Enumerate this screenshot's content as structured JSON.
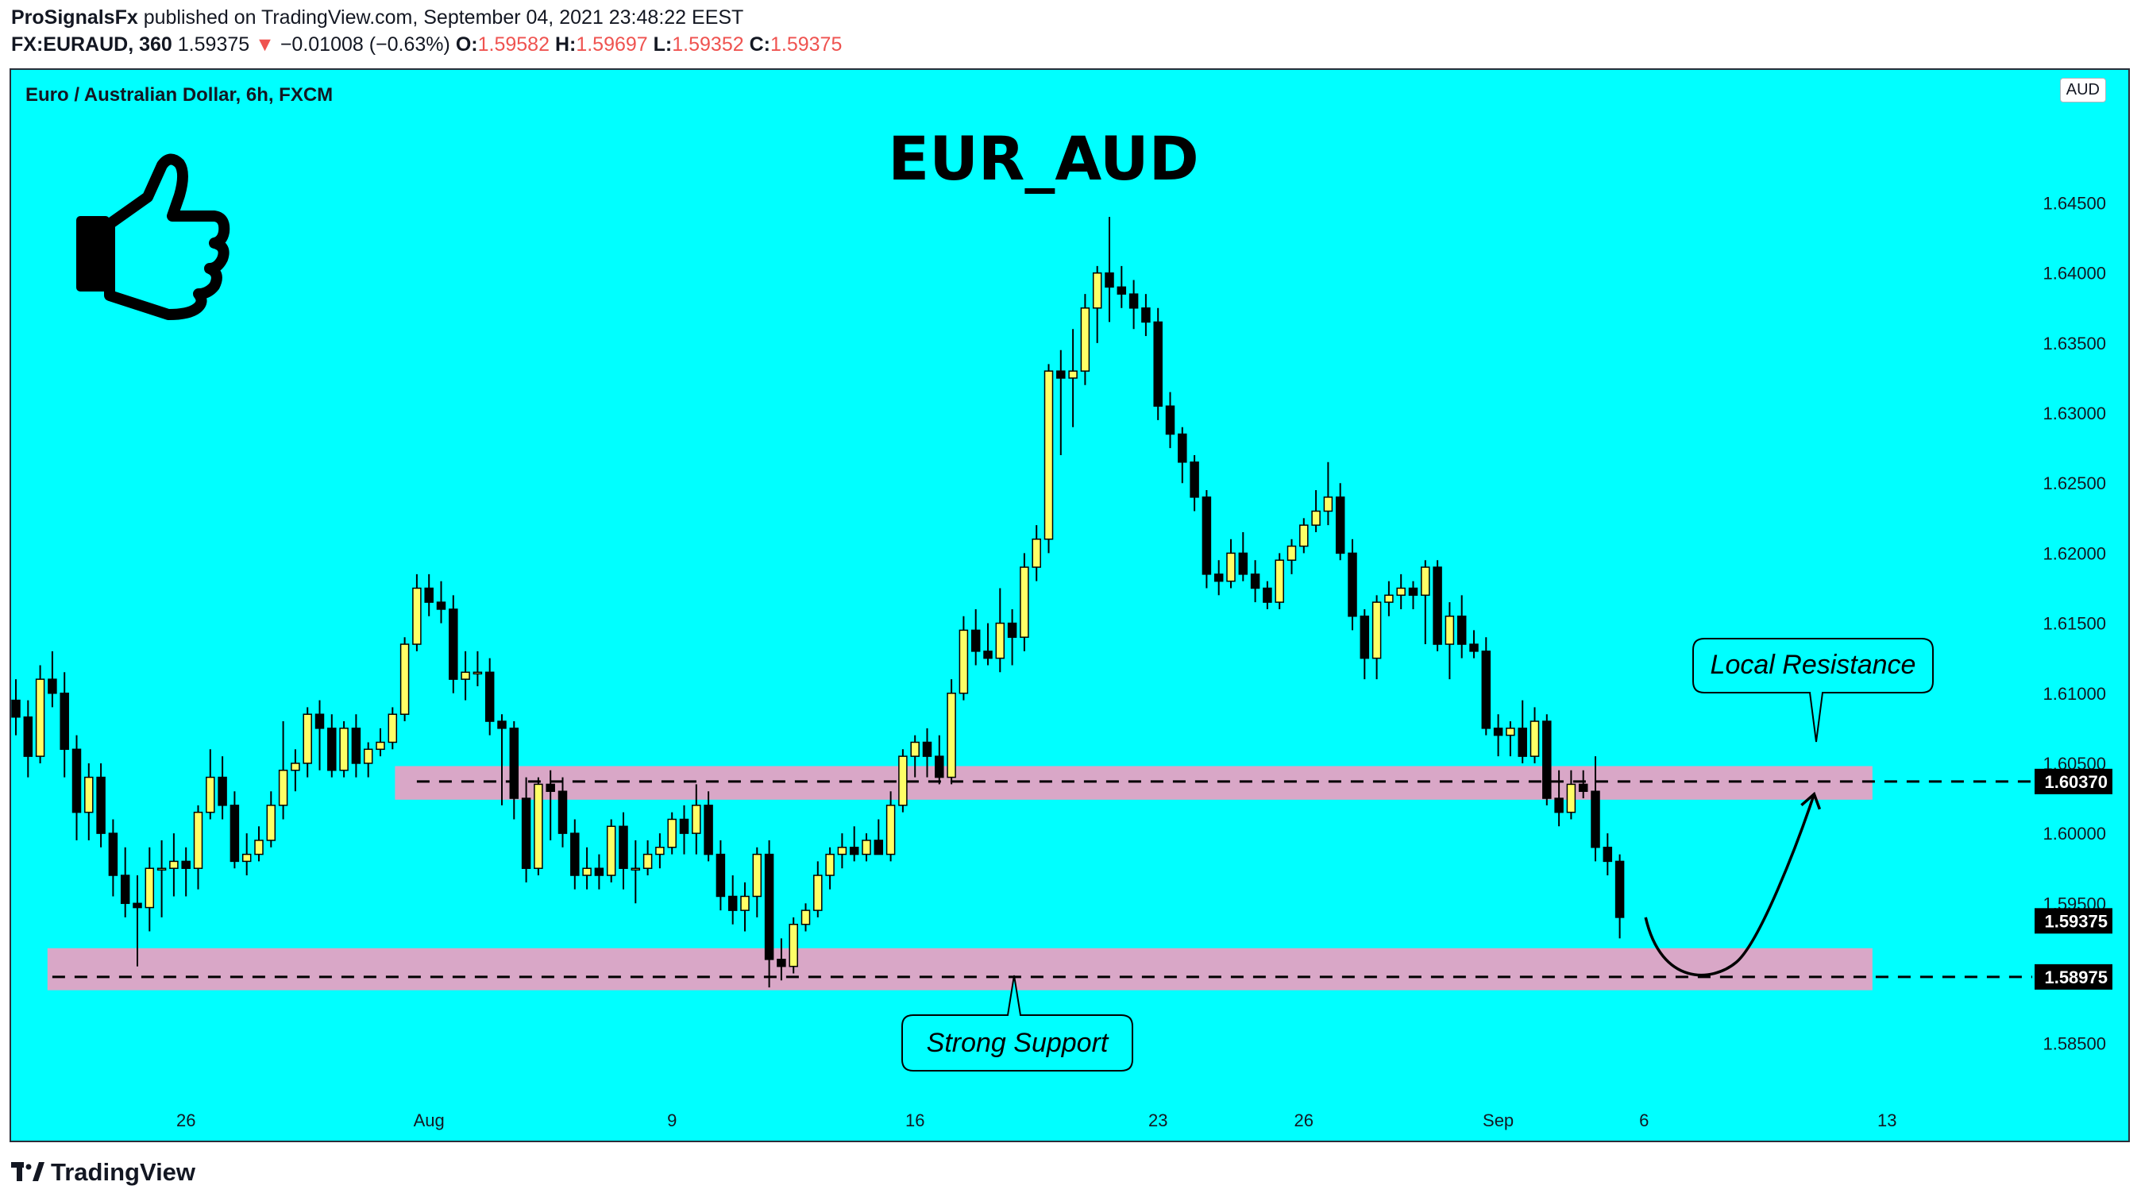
{
  "header": {
    "author": "ProSignalsFx",
    "published_text": "published on TradingView.com, September 04, 2021 23:48:22 EEST",
    "symbol": "FX:EURAUD, 360",
    "last_price": "1.59375",
    "change_arrow": "▼",
    "change": "−0.01008 (−0.63%)",
    "o_label": "O:",
    "o_value": "1.59582",
    "h_label": "H:",
    "h_value": "1.59697",
    "l_label": "L:",
    "l_value": "1.59352",
    "c_label": "C:",
    "c_value": "1.59375"
  },
  "footer": {
    "brand": "TradingView"
  },
  "colors": {
    "background": "#00ffff",
    "bull_body": "#ffff66",
    "bear_body": "#000000",
    "zone_fill": "#d9a7c7",
    "negative": "#ef5350"
  },
  "chart_data": {
    "type": "candlestick",
    "symbol_title": "Euro / Australian Dollar, 6h, FXCM",
    "title": "EUR_AUD",
    "currency": "AUD",
    "ylim": [
      1.5805,
      1.6545
    ],
    "y_ticks": [
      "1.58500",
      "1.59000",
      "1.59500",
      "1.60000",
      "1.60500",
      "1.61000",
      "1.61500",
      "1.62000",
      "1.62500",
      "1.63000",
      "1.63500",
      "1.64000",
      "1.64500"
    ],
    "x_ticks": [
      {
        "label": "26",
        "index": 14
      },
      {
        "label": "Aug",
        "index": 34
      },
      {
        "label": "9",
        "index": 54
      },
      {
        "label": "16",
        "index": 74
      },
      {
        "label": "23",
        "index": 94
      },
      {
        "label": "26",
        "index": 106
      },
      {
        "label": "Sep",
        "index": 122
      },
      {
        "label": "6",
        "index": 134
      },
      {
        "label": "13",
        "index": 154
      }
    ],
    "price_labels": [
      "1.60370",
      "1.59375",
      "1.58975"
    ],
    "support_zone": {
      "low": 1.5888,
      "high": 1.5918,
      "line": 1.58975,
      "label": "Strong Support"
    },
    "resistance_zone": {
      "low": 1.6024,
      "high": 1.6048,
      "line": 1.6037,
      "label": "Local Resistance"
    },
    "projection": {
      "from_index": 134,
      "from_price": 1.594,
      "bottom_index": 137,
      "bottom_price": 1.5905,
      "to_index": 148,
      "to_price": 1.6028
    },
    "candles": [
      [
        1.6095,
        1.611,
        1.607,
        1.6083
      ],
      [
        1.6083,
        1.6095,
        1.604,
        1.6055
      ],
      [
        1.6055,
        1.612,
        1.605,
        1.611
      ],
      [
        1.611,
        1.613,
        1.609,
        1.61
      ],
      [
        1.61,
        1.6115,
        1.604,
        1.606
      ],
      [
        1.606,
        1.607,
        1.5995,
        1.6015
      ],
      [
        1.6015,
        1.605,
        1.5995,
        1.604
      ],
      [
        1.604,
        1.605,
        1.599,
        1.6
      ],
      [
        1.6,
        1.601,
        1.5955,
        1.597
      ],
      [
        1.597,
        1.599,
        1.594,
        1.595
      ],
      [
        1.595,
        1.597,
        1.5905,
        1.5947
      ],
      [
        1.5947,
        1.599,
        1.593,
        1.5975
      ],
      [
        1.5975,
        1.5995,
        1.594,
        1.5975
      ],
      [
        1.5975,
        1.6,
        1.5955,
        1.598
      ],
      [
        1.598,
        1.599,
        1.5955,
        1.5975
      ],
      [
        1.5975,
        1.602,
        1.596,
        1.6015
      ],
      [
        1.6015,
        1.606,
        1.601,
        1.604
      ],
      [
        1.604,
        1.6055,
        1.601,
        1.602
      ],
      [
        1.602,
        1.603,
        1.5975,
        1.598
      ],
      [
        1.598,
        1.6,
        1.597,
        1.5985
      ],
      [
        1.5985,
        1.6005,
        1.598,
        1.5995
      ],
      [
        1.5995,
        1.603,
        1.599,
        1.602
      ],
      [
        1.602,
        1.608,
        1.601,
        1.6045
      ],
      [
        1.6045,
        1.606,
        1.603,
        1.605
      ],
      [
        1.605,
        1.609,
        1.604,
        1.6085
      ],
      [
        1.6085,
        1.6095,
        1.6045,
        1.6075
      ],
      [
        1.6075,
        1.6085,
        1.604,
        1.6045
      ],
      [
        1.6045,
        1.608,
        1.604,
        1.6075
      ],
      [
        1.6075,
        1.6085,
        1.604,
        1.605
      ],
      [
        1.605,
        1.6065,
        1.604,
        1.606
      ],
      [
        1.606,
        1.6075,
        1.6055,
        1.6065
      ],
      [
        1.6065,
        1.609,
        1.606,
        1.6085
      ],
      [
        1.6085,
        1.614,
        1.608,
        1.6135
      ],
      [
        1.6135,
        1.6185,
        1.613,
        1.6175
      ],
      [
        1.6175,
        1.6185,
        1.6155,
        1.6165
      ],
      [
        1.6165,
        1.618,
        1.615,
        1.616
      ],
      [
        1.616,
        1.617,
        1.61,
        1.611
      ],
      [
        1.611,
        1.613,
        1.6095,
        1.6115
      ],
      [
        1.6115,
        1.613,
        1.6105,
        1.6115
      ],
      [
        1.6115,
        1.6125,
        1.607,
        1.608
      ],
      [
        1.608,
        1.6085,
        1.602,
        1.6075
      ],
      [
        1.6075,
        1.608,
        1.601,
        1.6025
      ],
      [
        1.6025,
        1.604,
        1.5965,
        1.5975
      ],
      [
        1.5975,
        1.604,
        1.597,
        1.6035
      ],
      [
        1.6035,
        1.6045,
        1.5995,
        1.603
      ],
      [
        1.603,
        1.604,
        1.599,
        1.6
      ],
      [
        1.6,
        1.601,
        1.596,
        1.597
      ],
      [
        1.597,
        1.599,
        1.596,
        1.5975
      ],
      [
        1.5975,
        1.5985,
        1.596,
        1.597
      ],
      [
        1.597,
        1.601,
        1.5965,
        1.6005
      ],
      [
        1.6005,
        1.6015,
        1.596,
        1.5975
      ],
      [
        1.5975,
        1.5995,
        1.595,
        1.5975
      ],
      [
        1.5975,
        1.5995,
        1.597,
        1.5985
      ],
      [
        1.5985,
        1.6,
        1.5975,
        1.599
      ],
      [
        1.599,
        1.6015,
        1.5985,
        1.601
      ],
      [
        1.601,
        1.602,
        1.5985,
        1.6
      ],
      [
        1.6,
        1.6035,
        1.5985,
        1.602
      ],
      [
        1.602,
        1.603,
        1.598,
        1.5985
      ],
      [
        1.5985,
        1.5995,
        1.5945,
        1.5955
      ],
      [
        1.5955,
        1.597,
        1.5935,
        1.5945
      ],
      [
        1.5945,
        1.5965,
        1.593,
        1.5955
      ],
      [
        1.5955,
        1.599,
        1.594,
        1.5985
      ],
      [
        1.5985,
        1.5995,
        1.589,
        1.591
      ],
      [
        1.591,
        1.5925,
        1.5895,
        1.5905
      ],
      [
        1.5905,
        1.594,
        1.59,
        1.5935
      ],
      [
        1.5935,
        1.595,
        1.593,
        1.5945
      ],
      [
        1.5945,
        1.598,
        1.594,
        1.597
      ],
      [
        1.597,
        1.599,
        1.596,
        1.5985
      ],
      [
        1.5985,
        1.6,
        1.5975,
        1.599
      ],
      [
        1.599,
        1.6005,
        1.598,
        1.5985
      ],
      [
        1.5985,
        1.6,
        1.598,
        1.5995
      ],
      [
        1.5995,
        1.601,
        1.5985,
        1.5985
      ],
      [
        1.5985,
        1.603,
        1.598,
        1.602
      ],
      [
        1.602,
        1.606,
        1.6015,
        1.6055
      ],
      [
        1.6055,
        1.607,
        1.604,
        1.6065
      ],
      [
        1.6065,
        1.6075,
        1.604,
        1.6055
      ],
      [
        1.6055,
        1.607,
        1.6035,
        1.604
      ],
      [
        1.604,
        1.611,
        1.6035,
        1.61
      ],
      [
        1.61,
        1.6155,
        1.6095,
        1.6145
      ],
      [
        1.6145,
        1.616,
        1.612,
        1.613
      ],
      [
        1.613,
        1.615,
        1.612,
        1.6125
      ],
      [
        1.6125,
        1.6175,
        1.6115,
        1.615
      ],
      [
        1.615,
        1.616,
        1.612,
        1.614
      ],
      [
        1.614,
        1.62,
        1.613,
        1.619
      ],
      [
        1.619,
        1.622,
        1.618,
        1.621
      ],
      [
        1.621,
        1.6335,
        1.62,
        1.633
      ],
      [
        1.633,
        1.6345,
        1.627,
        1.6325
      ],
      [
        1.6325,
        1.636,
        1.629,
        1.633
      ],
      [
        1.633,
        1.6385,
        1.632,
        1.6375
      ],
      [
        1.6375,
        1.6405,
        1.635,
        1.64
      ],
      [
        1.64,
        1.644,
        1.6365,
        1.639
      ],
      [
        1.639,
        1.6405,
        1.6375,
        1.6385
      ],
      [
        1.6385,
        1.6395,
        1.636,
        1.6375
      ],
      [
        1.6375,
        1.6385,
        1.6355,
        1.6365
      ],
      [
        1.6365,
        1.6375,
        1.6295,
        1.6305
      ],
      [
        1.6305,
        1.6315,
        1.6275,
        1.6285
      ],
      [
        1.6285,
        1.629,
        1.625,
        1.6265
      ],
      [
        1.6265,
        1.627,
        1.623,
        1.624
      ],
      [
        1.624,
        1.6245,
        1.6175,
        1.6185
      ],
      [
        1.6185,
        1.6195,
        1.617,
        1.618
      ],
      [
        1.618,
        1.621,
        1.6175,
        1.62
      ],
      [
        1.62,
        1.6215,
        1.618,
        1.6185
      ],
      [
        1.6185,
        1.6195,
        1.6165,
        1.6175
      ],
      [
        1.6175,
        1.618,
        1.616,
        1.6165
      ],
      [
        1.6165,
        1.62,
        1.616,
        1.6195
      ],
      [
        1.6195,
        1.621,
        1.6185,
        1.6205
      ],
      [
        1.6205,
        1.6225,
        1.62,
        1.622
      ],
      [
        1.622,
        1.6245,
        1.6215,
        1.623
      ],
      [
        1.623,
        1.6265,
        1.622,
        1.624
      ],
      [
        1.624,
        1.625,
        1.6195,
        1.62
      ],
      [
        1.62,
        1.621,
        1.6145,
        1.6155
      ],
      [
        1.6155,
        1.616,
        1.611,
        1.6125
      ],
      [
        1.6125,
        1.617,
        1.611,
        1.6165
      ],
      [
        1.6165,
        1.618,
        1.6155,
        1.617
      ],
      [
        1.617,
        1.6185,
        1.616,
        1.6175
      ],
      [
        1.6175,
        1.618,
        1.616,
        1.617
      ],
      [
        1.617,
        1.6195,
        1.6135,
        1.619
      ],
      [
        1.619,
        1.6195,
        1.613,
        1.6135
      ],
      [
        1.6135,
        1.6165,
        1.611,
        1.6155
      ],
      [
        1.6155,
        1.617,
        1.6125,
        1.6135
      ],
      [
        1.6135,
        1.6145,
        1.6125,
        1.613
      ],
      [
        1.613,
        1.614,
        1.607,
        1.6075
      ],
      [
        1.6075,
        1.6085,
        1.6055,
        1.607
      ],
      [
        1.607,
        1.608,
        1.6055,
        1.6075
      ],
      [
        1.6075,
        1.6095,
        1.605,
        1.6055
      ],
      [
        1.6055,
        1.609,
        1.605,
        1.608
      ],
      [
        1.608,
        1.6085,
        1.602,
        1.6025
      ],
      [
        1.6025,
        1.6045,
        1.6005,
        1.6015
      ],
      [
        1.6015,
        1.6045,
        1.601,
        1.6035
      ],
      [
        1.6035,
        1.6045,
        1.6025,
        1.603
      ],
      [
        1.603,
        1.6055,
        1.598,
        1.599
      ],
      [
        1.599,
        1.6,
        1.597,
        1.598
      ],
      [
        1.598,
        1.5985,
        1.5925,
        1.594
      ]
    ]
  }
}
